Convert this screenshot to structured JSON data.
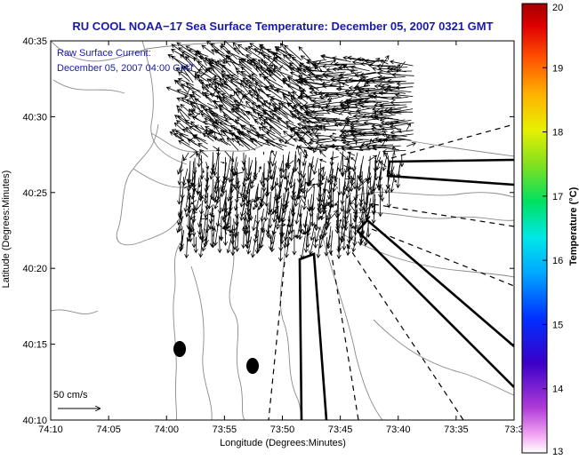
{
  "chart_data": {
    "type": "scatter",
    "title": "RU COOL  NOAA−17  Sea Surface Temperature:  December 05, 2007 0321 GMT",
    "xlabel": "Longitude (Degrees:Minutes)",
    "ylabel": "Latitude (Degrees:Minutes)",
    "x_ticks": [
      "74:10",
      "74:05",
      "74:00",
      "73:55",
      "73:50",
      "73:45",
      "73:40",
      "73:35",
      "73:3"
    ],
    "y_ticks": [
      "40:35",
      "40:30",
      "40:25",
      "40:20",
      "40:15",
      "40:10"
    ],
    "xlim": [
      -74.1667,
      -73.5
    ],
    "ylim": [
      40.1667,
      40.5833
    ],
    "annotations": [
      "Raw Surface Current:",
      "December 05, 2007 04:00 GMT"
    ],
    "scale_label": "50 cm/s",
    "colorbar": {
      "label": "Temperature (°C)",
      "min": 13,
      "max": 20,
      "ticks": [
        "20",
        "19",
        "18",
        "17",
        "16",
        "15",
        "14",
        "13"
      ]
    },
    "grid": false,
    "legend": "none"
  }
}
